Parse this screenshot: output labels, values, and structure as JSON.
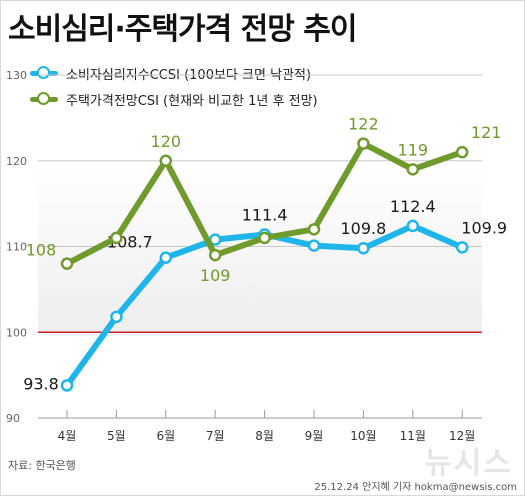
{
  "title": "소비심리·주택가격 전망 추이",
  "source": "자료: 한국은행",
  "credit": "25.12.24 안지혜 기자 hokma@newsis.com",
  "watermark": "뉴시스",
  "colors": {
    "ccsi": "#1fb5ea",
    "housing": "#6f9a2c",
    "baseline": "#cc2222"
  },
  "chart_data": {
    "type": "line",
    "categories": [
      "4월",
      "5월",
      "6월",
      "7월",
      "8월",
      "9월",
      "10월",
      "11월",
      "12월"
    ],
    "ylim": [
      90,
      130
    ],
    "yticks": [
      "90",
      "100",
      "110",
      "120",
      "130"
    ],
    "reference_line": 100,
    "series": [
      {
        "name": "소비자심리지수CCSI (100보다 크면 낙관적)",
        "values": [
          93.8,
          101.8,
          108.7,
          110.8,
          111.4,
          110.1,
          109.8,
          112.4,
          109.9
        ],
        "data_labels": [
          "93.8",
          "",
          "108.7",
          "",
          "111.4",
          "",
          "109.8",
          "112.4",
          "109.9"
        ]
      },
      {
        "name": "주택가격전망CSI (현재와 비교한 1년 후 전망)",
        "values": [
          108,
          111,
          120,
          109,
          111,
          112,
          122,
          119,
          121
        ],
        "data_labels": [
          "108",
          "",
          "120",
          "109",
          "",
          "",
          "122",
          "119",
          "121"
        ]
      }
    ]
  }
}
